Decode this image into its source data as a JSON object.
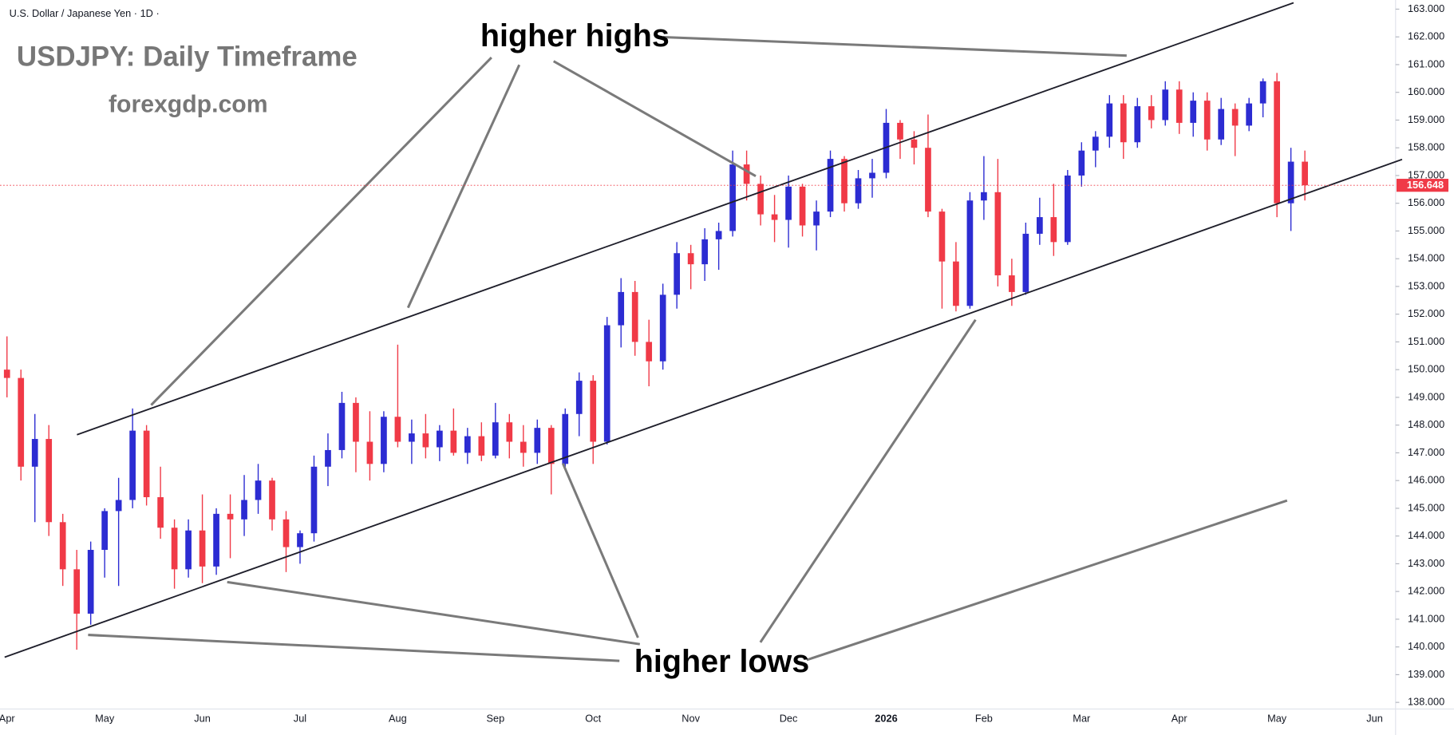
{
  "chart_data": {
    "type": "candlestick",
    "symbol_label": "U.S. Dollar / Japanese Yen · 1D ·",
    "title": "USDJPY: Daily Timeframe",
    "subtitle": "forexgdp.com",
    "annotations": [
      "higher highs",
      "higher lows"
    ],
    "categories": [
      "Apr",
      null,
      null,
      null,
      null,
      null,
      null,
      "May",
      null,
      null,
      null,
      null,
      null,
      null,
      "Jun",
      null,
      null,
      null,
      null,
      null,
      null,
      "Jul",
      null,
      null,
      null,
      null,
      null,
      null,
      "Aug",
      null,
      null,
      null,
      null,
      null,
      null,
      "Sep",
      null,
      null,
      null,
      null,
      null,
      null,
      "Oct",
      null,
      null,
      null,
      null,
      null,
      null,
      "Nov",
      null,
      null,
      null,
      null,
      null,
      null,
      "Dec",
      null,
      null,
      null,
      null,
      null,
      null,
      "2026",
      null,
      null,
      null,
      null,
      null,
      null,
      "Feb",
      null,
      null,
      null,
      null,
      null,
      null,
      "Mar",
      null,
      null,
      null,
      null,
      null,
      null,
      "Apr",
      null,
      null,
      null,
      null,
      null,
      null,
      "May",
      null,
      null,
      null,
      null,
      null,
      null,
      "Jun",
      null
    ],
    "open": [
      150.0,
      149.7,
      146.5,
      147.5,
      144.5,
      142.8,
      141.2,
      143.5,
      144.9,
      145.3,
      147.8,
      145.4,
      144.3,
      142.8,
      144.2,
      142.9,
      144.8,
      144.6,
      145.3,
      146.0,
      144.6,
      143.6,
      144.1,
      146.5,
      147.1,
      148.8,
      147.4,
      146.6,
      148.3,
      147.4,
      147.7,
      147.2,
      147.8,
      147.0,
      147.6,
      146.9,
      148.1,
      147.4,
      147.0,
      147.9,
      146.6,
      148.4,
      149.6,
      147.4,
      151.6,
      152.8,
      151.0,
      150.3,
      152.7,
      154.2,
      153.8,
      154.7,
      155.0,
      157.4,
      156.7,
      155.6,
      155.4,
      156.6,
      155.2,
      155.7,
      157.6,
      156.0,
      156.9,
      157.1,
      158.9,
      158.3,
      158.0,
      155.7,
      153.9,
      152.3,
      156.1,
      156.4,
      153.4,
      152.8,
      154.9,
      155.5,
      154.6,
      157.0,
      157.9,
      158.4,
      159.6,
      158.2,
      159.5,
      159.0,
      160.1,
      158.9,
      159.7,
      158.3,
      159.4,
      158.8,
      159.6,
      160.4,
      156.0,
      157.5,
      null,
      null,
      null,
      null,
      null,
      null
    ],
    "high": [
      151.2,
      150.0,
      148.4,
      148.0,
      144.8,
      143.5,
      143.8,
      145.0,
      146.1,
      148.6,
      148.0,
      146.5,
      144.6,
      144.6,
      145.5,
      145.0,
      145.5,
      146.2,
      146.6,
      146.1,
      144.9,
      144.2,
      146.9,
      147.7,
      149.2,
      149.0,
      148.5,
      148.5,
      150.9,
      148.2,
      148.4,
      148.0,
      148.6,
      147.9,
      148.1,
      148.8,
      148.4,
      148.0,
      148.2,
      148.0,
      148.6,
      149.9,
      149.8,
      151.9,
      153.3,
      153.2,
      151.8,
      153.1,
      154.6,
      154.5,
      155.1,
      155.3,
      157.9,
      157.9,
      157.0,
      156.3,
      157.0,
      156.7,
      156.1,
      157.9,
      157.7,
      157.2,
      157.6,
      159.4,
      159.0,
      158.6,
      159.2,
      155.8,
      154.6,
      156.4,
      157.7,
      157.6,
      154.0,
      155.3,
      156.2,
      156.7,
      157.2,
      158.2,
      158.6,
      159.9,
      159.9,
      159.8,
      159.9,
      160.4,
      160.4,
      160.0,
      160.0,
      159.8,
      159.6,
      159.8,
      160.5,
      160.7,
      158.0,
      157.9,
      null,
      null,
      null,
      null,
      null,
      null
    ],
    "low": [
      149.0,
      146.0,
      144.5,
      144.0,
      142.2,
      139.9,
      140.8,
      142.5,
      142.2,
      145.0,
      145.1,
      143.9,
      142.1,
      142.5,
      142.3,
      142.6,
      143.2,
      144.0,
      144.8,
      144.2,
      142.7,
      143.0,
      143.8,
      145.8,
      146.8,
      146.3,
      146.0,
      146.3,
      147.2,
      146.6,
      146.8,
      146.7,
      146.9,
      146.6,
      146.7,
      146.8,
      146.8,
      146.5,
      146.6,
      145.5,
      146.4,
      147.6,
      146.6,
      147.3,
      150.8,
      150.5,
      149.4,
      150.0,
      152.2,
      152.9,
      153.2,
      153.6,
      154.8,
      156.1,
      155.2,
      154.6,
      154.4,
      154.8,
      154.3,
      155.5,
      155.7,
      155.8,
      156.2,
      156.9,
      157.6,
      157.4,
      155.5,
      152.2,
      152.1,
      152.2,
      155.4,
      153.0,
      152.3,
      152.7,
      154.5,
      154.1,
      154.5,
      156.6,
      157.3,
      158.0,
      157.6,
      158.0,
      158.7,
      158.8,
      158.5,
      158.4,
      157.9,
      158.1,
      157.7,
      158.6,
      159.1,
      155.5,
      155.0,
      156.1,
      null,
      null,
      null,
      null,
      null,
      null
    ],
    "close": [
      149.7,
      146.5,
      147.5,
      144.5,
      142.8,
      141.2,
      143.5,
      144.9,
      145.3,
      147.8,
      145.4,
      144.3,
      142.8,
      144.2,
      142.9,
      144.8,
      144.6,
      145.3,
      146.0,
      144.6,
      143.6,
      144.1,
      146.5,
      147.1,
      148.8,
      147.4,
      146.6,
      148.3,
      147.4,
      147.7,
      147.2,
      147.8,
      147.0,
      147.6,
      146.9,
      148.1,
      147.4,
      147.0,
      147.9,
      146.6,
      148.4,
      149.6,
      147.4,
      151.6,
      152.8,
      151.0,
      150.3,
      152.7,
      154.2,
      153.8,
      154.7,
      155.0,
      157.4,
      156.7,
      155.6,
      155.4,
      156.6,
      155.2,
      155.7,
      157.6,
      156.0,
      156.9,
      157.1,
      158.9,
      158.3,
      158.0,
      155.7,
      153.9,
      152.3,
      156.1,
      156.4,
      153.4,
      152.8,
      154.9,
      155.5,
      154.6,
      157.0,
      157.9,
      158.4,
      159.6,
      158.2,
      159.5,
      159.0,
      160.1,
      158.9,
      159.7,
      158.3,
      159.4,
      158.8,
      159.6,
      160.4,
      156.0,
      157.5,
      156.648,
      null,
      null,
      null,
      null,
      null,
      null
    ],
    "up_color": "#2c2cd2",
    "down_color": "#f03a47",
    "current_price": 156.648,
    "ylim": [
      137.76,
      163.33
    ],
    "yticks": [
      {
        "value": 138,
        "label": "138.000"
      },
      {
        "value": 139,
        "label": "139.000"
      },
      {
        "value": 140,
        "label": "140.000"
      },
      {
        "value": 141,
        "label": "141.000"
      },
      {
        "value": 142,
        "label": "142.000"
      },
      {
        "value": 143,
        "label": "143.000"
      },
      {
        "value": 144,
        "label": "144.000"
      },
      {
        "value": 145,
        "label": "145.000"
      },
      {
        "value": 146,
        "label": "146.000"
      },
      {
        "value": 147,
        "label": "147.000"
      },
      {
        "value": 148,
        "label": "148.000"
      },
      {
        "value": 149,
        "label": "149.000"
      },
      {
        "value": 150,
        "label": "150.000"
      },
      {
        "value": 151,
        "label": "151.000"
      },
      {
        "value": 152,
        "label": "152.000"
      },
      {
        "value": 153,
        "label": "153.000"
      },
      {
        "value": 154,
        "label": "154.000"
      },
      {
        "value": 155,
        "label": "155.000"
      },
      {
        "value": 156,
        "label": "156.000"
      },
      {
        "value": 157,
        "label": "157.000"
      },
      {
        "value": 158,
        "label": "158.000"
      },
      {
        "value": 159,
        "label": "159.000"
      },
      {
        "value": 160,
        "label": "160.000"
      },
      {
        "value": 161,
        "label": "161.000"
      },
      {
        "value": 162,
        "label": "162.000"
      },
      {
        "value": 163,
        "label": "163.000"
      }
    ],
    "grid": false
  }
}
